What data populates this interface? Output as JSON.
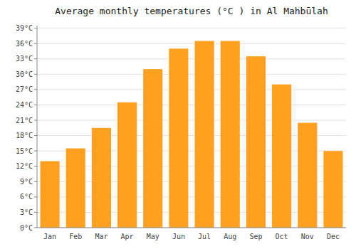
{
  "chart_data": {
    "type": "bar",
    "title": "Average monthly temperatures (°C ) in Al Mahbūlah",
    "categories": [
      "Jan",
      "Feb",
      "Mar",
      "Apr",
      "May",
      "Jun",
      "Jul",
      "Aug",
      "Sep",
      "Oct",
      "Nov",
      "Dec"
    ],
    "values": [
      13,
      15.5,
      19.5,
      24.5,
      31,
      35,
      36.5,
      36.5,
      33.5,
      28,
      20.5,
      15
    ],
    "color": "#FFA020",
    "ylim": [
      0,
      39.5
    ],
    "yticks": [
      {
        "value": 0,
        "label": "0°C"
      },
      {
        "value": 3,
        "label": "3°C"
      },
      {
        "value": 6,
        "label": "6°C"
      },
      {
        "value": 9,
        "label": "9°C"
      },
      {
        "value": 12,
        "label": "12°C"
      },
      {
        "value": 15,
        "label": "15°C"
      },
      {
        "value": 18,
        "label": "18°C"
      },
      {
        "value": 21,
        "label": "21°C"
      },
      {
        "value": 24,
        "label": "24°C"
      },
      {
        "value": 27,
        "label": "27°C"
      },
      {
        "value": 30,
        "label": "30°C"
      },
      {
        "value": 33,
        "label": "33°C"
      },
      {
        "value": 36,
        "label": "36°C"
      },
      {
        "value": 39,
        "label": "39°C"
      }
    ],
    "grid": true
  }
}
